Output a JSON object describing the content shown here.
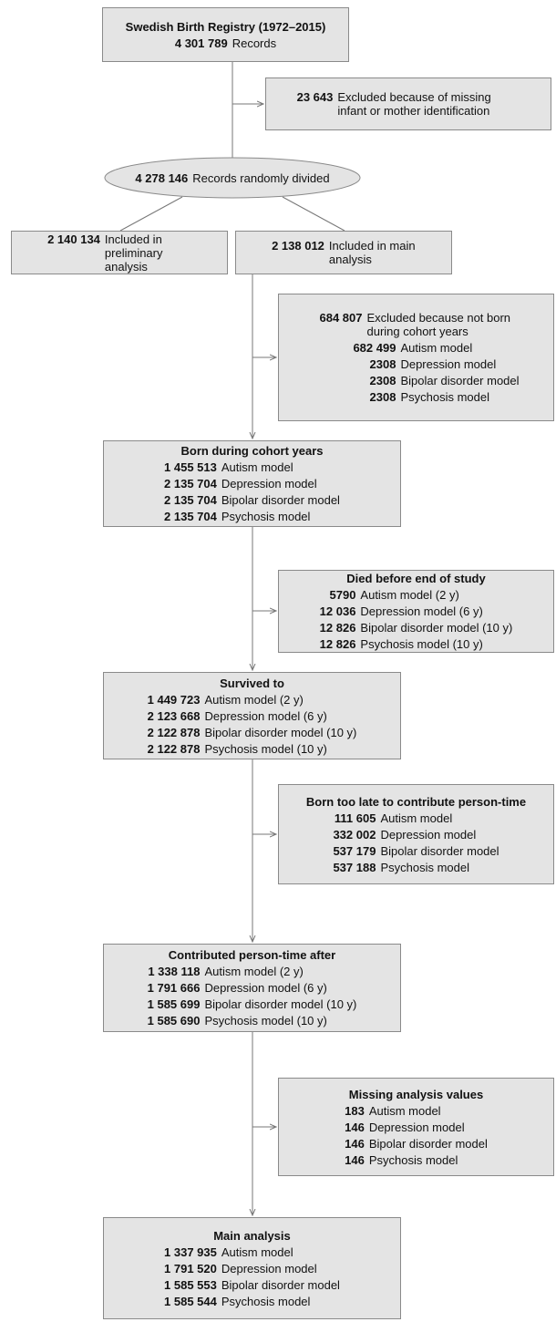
{
  "nodes": [
    {
      "title": "Swedish Birth Registry (1972–2015)",
      "rows": [
        {
          "count": "4 301 789",
          "label": "Records"
        }
      ]
    },
    {
      "rows": [
        {
          "count": "23 643",
          "label": "Excluded because of missing infant or mother identification"
        }
      ]
    },
    {
      "rows": [
        {
          "count": "4 278 146",
          "label": "Records randomly divided"
        }
      ]
    },
    {
      "rows": [
        {
          "count": "2 140 134",
          "label": "Included in preliminary analysis"
        }
      ]
    },
    {
      "rows": [
        {
          "count": "2 138 012",
          "label": "Included in main analysis"
        }
      ]
    },
    {
      "rows": [
        {
          "count": "684 807",
          "label": "Excluded because not born during cohort years"
        }
      ],
      "sub": [
        {
          "count": "682 499",
          "label": "Autism model"
        },
        {
          "count": "2308",
          "label": "Depression model"
        },
        {
          "count": "2308",
          "label": "Bipolar disorder model"
        },
        {
          "count": "2308",
          "label": "Psychosis model"
        }
      ]
    },
    {
      "title": "Born during cohort years",
      "rows": [
        {
          "count": "1 455 513",
          "label": "Autism model"
        },
        {
          "count": "2 135 704",
          "label": "Depression model"
        },
        {
          "count": "2 135 704",
          "label": "Bipolar disorder model"
        },
        {
          "count": "2 135 704",
          "label": "Psychosis model"
        }
      ]
    },
    {
      "title": "Died before end of study",
      "rows": [
        {
          "count": "5790",
          "label": "Autism model (2 y)"
        },
        {
          "count": "12 036",
          "label": "Depression model (6 y)"
        },
        {
          "count": "12 826",
          "label": "Bipolar disorder model (10 y)"
        },
        {
          "count": "12 826",
          "label": "Psychosis model (10 y)"
        }
      ]
    },
    {
      "title": "Survived to",
      "rows": [
        {
          "count": "1 449 723",
          "label": "Autism model (2 y)"
        },
        {
          "count": "2 123 668",
          "label": "Depression model (6 y)"
        },
        {
          "count": "2 122 878",
          "label": "Bipolar disorder model (10 y)"
        },
        {
          "count": "2 122 878",
          "label": "Psychosis model (10 y)"
        }
      ]
    },
    {
      "title": "Born too late to contribute person-time",
      "rows": [
        {
          "count": "111 605",
          "label": "Autism model"
        },
        {
          "count": "332 002",
          "label": "Depression model"
        },
        {
          "count": "537 179",
          "label": "Bipolar disorder model"
        },
        {
          "count": "537 188",
          "label": "Psychosis model"
        }
      ]
    },
    {
      "title": "Contributed person-time after",
      "rows": [
        {
          "count": "1 338 118",
          "label": "Autism model (2 y)"
        },
        {
          "count": "1 791 666",
          "label": "Depression model (6 y)"
        },
        {
          "count": "1 585 699",
          "label": "Bipolar disorder model (10 y)"
        },
        {
          "count": "1 585 690",
          "label": "Psychosis model (10 y)"
        }
      ]
    },
    {
      "title": "Missing analysis values",
      "rows": [
        {
          "count": "183",
          "label": "Autism model"
        },
        {
          "count": "146",
          "label": "Depression model"
        },
        {
          "count": "146",
          "label": "Bipolar disorder model"
        },
        {
          "count": "146",
          "label": "Psychosis model"
        }
      ]
    },
    {
      "title": "Main analysis",
      "rows": [
        {
          "count": "1 337 935",
          "label": "Autism model"
        },
        {
          "count": "1 791 520",
          "label": "Depression model"
        },
        {
          "count": "1 585 553",
          "label": "Bipolar disorder model"
        },
        {
          "count": "1 585 544",
          "label": "Psychosis model"
        }
      ]
    }
  ]
}
